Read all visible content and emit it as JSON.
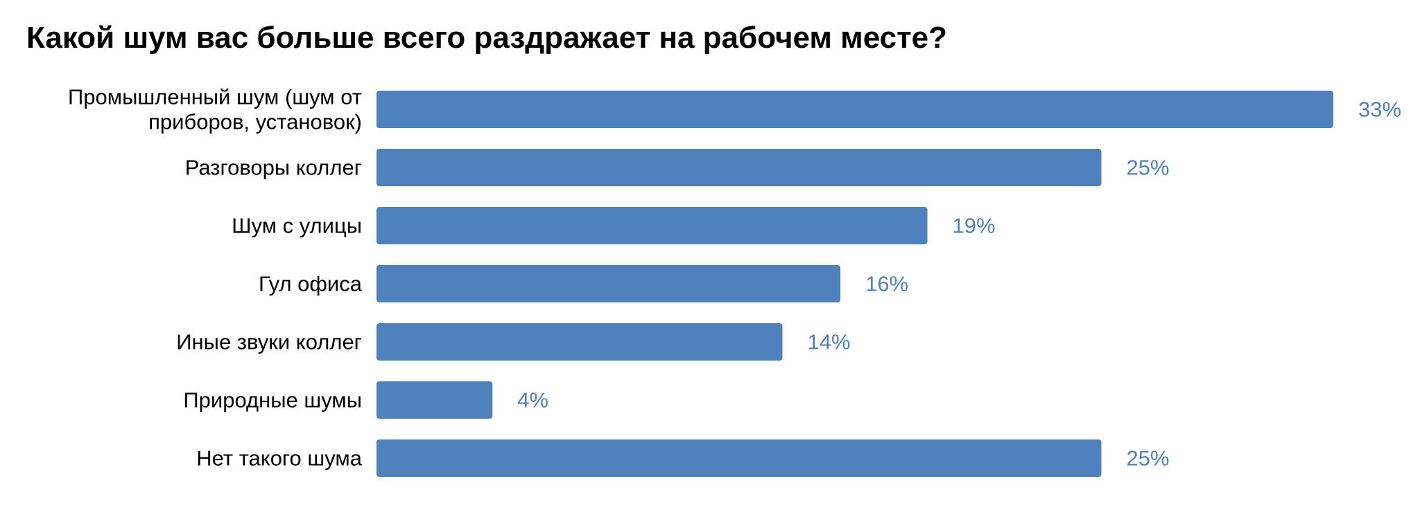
{
  "chart_data": {
    "type": "bar",
    "orientation": "horizontal",
    "title": "Какой шум вас больше всего раздражает на рабочем месте?",
    "categories": [
      [
        "Промышленный шум (шум от",
        "приборов, установок)"
      ],
      [
        "Разговоры коллег"
      ],
      [
        "Шум с улицы"
      ],
      [
        "Гул офиса"
      ],
      [
        "Иные звуки коллег"
      ],
      [
        "Природные шумы"
      ],
      [
        "Нет такого шума"
      ]
    ],
    "values": [
      33,
      25,
      19,
      16,
      14,
      4,
      25
    ],
    "value_labels": [
      "33%",
      "25%",
      "19%",
      "16%",
      "14%",
      "4%",
      "25%"
    ],
    "unit": "%",
    "xlim": [
      0,
      33
    ],
    "grid": false,
    "legend": "none",
    "colors": {
      "bar": "#4F81BD",
      "value_label": "#4F81BD",
      "category_label": "#000000"
    }
  }
}
